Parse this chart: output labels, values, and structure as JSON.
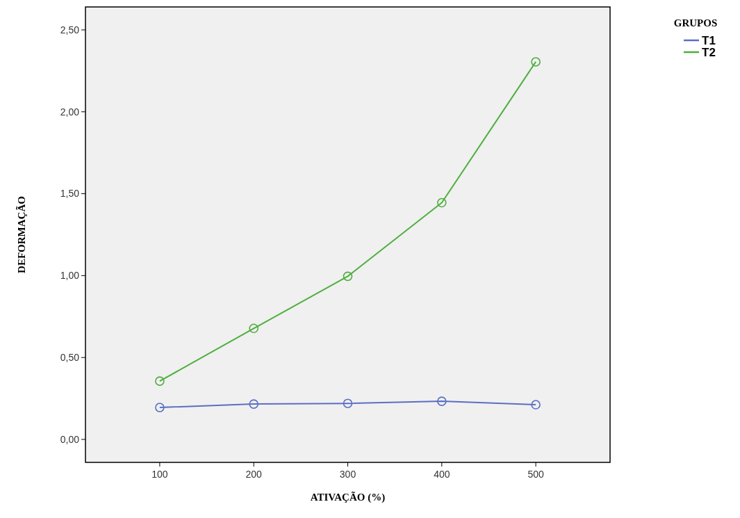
{
  "chart_data": {
    "type": "line",
    "xlabel": "ATIVAÇÃO (%)",
    "ylabel": "DEFORMAÇÃO",
    "legend_title": "GRUPOS",
    "categories": [
      "100",
      "200",
      "300",
      "400",
      "500"
    ],
    "series": [
      {
        "name": "T1",
        "color": "#5b6ec4",
        "values": [
          0.195,
          0.216,
          0.22,
          0.233,
          0.212
        ]
      },
      {
        "name": "T2",
        "color": "#4fae3e",
        "values": [
          0.356,
          0.678,
          0.996,
          1.445,
          2.305
        ]
      }
    ],
    "ylim": [
      -0.14,
      2.64
    ],
    "yticks": [
      {
        "value": 0,
        "label": "0,00"
      },
      {
        "value": 0.5,
        "label": "0,50"
      },
      {
        "value": 1,
        "label": "1,00"
      },
      {
        "value": 1.5,
        "label": "1,50"
      },
      {
        "value": 2,
        "label": "2,00"
      },
      {
        "value": 2.5,
        "label": "2,50"
      }
    ],
    "grid": false,
    "legend": "top right",
    "marker": "circle",
    "line_style": "solid"
  }
}
